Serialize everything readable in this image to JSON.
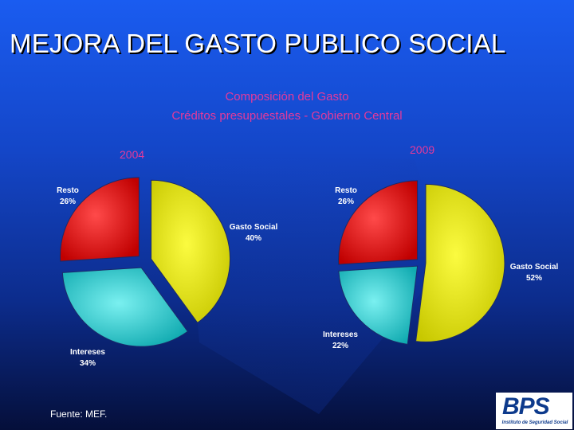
{
  "slide": {
    "title": "MEJORA DEL GASTO PUBLICO SOCIAL",
    "source": "Fuente: MEF."
  },
  "chart_header": {
    "line1": "Composición del Gasto",
    "line2": "Créditos presupuestales - Gobierno Central"
  },
  "logo": {
    "name": "BPS",
    "subtitle": "Instituto de Seguridad Social"
  },
  "colors": {
    "background": "#1446c8",
    "title_accent": "#e53a9a",
    "gasto_social": "#e6e600",
    "intereses": "#22d3d3",
    "resto": "#e80000"
  },
  "chart_data": [
    {
      "type": "pie",
      "title": "2004",
      "labels": [
        "Gasto Social",
        "Intereses",
        "Resto"
      ],
      "values": [
        40,
        34,
        26
      ],
      "value_labels": [
        "40%",
        "34%",
        "26%"
      ]
    },
    {
      "type": "pie",
      "title": "2009",
      "labels": [
        "Gasto Social",
        "Intereses",
        "Resto"
      ],
      "values": [
        52,
        22,
        26
      ],
      "value_labels": [
        "52%",
        "22%",
        "26%"
      ]
    }
  ]
}
